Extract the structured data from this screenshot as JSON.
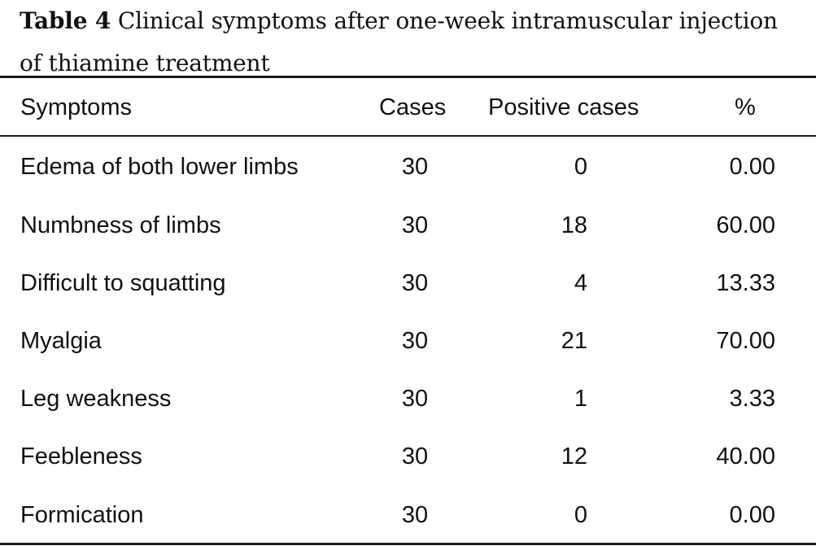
{
  "caption": {
    "label": "Table 4",
    "line1_text": "Clinical symptoms after one-week intramuscular injection",
    "line2_text": "of thiamine treatment"
  },
  "table": {
    "headers": {
      "symptoms": "Symptoms",
      "cases": "Cases",
      "positive_cases": "Positive cases",
      "percent": "%"
    },
    "rows": [
      {
        "symptom": "Edema of both lower limbs",
        "cases": "30",
        "positive": "0",
        "percent": "0.00"
      },
      {
        "symptom": "Numbness of limbs",
        "cases": "30",
        "positive": "18",
        "percent": "60.00"
      },
      {
        "symptom": "Difficult to squatting",
        "cases": "30",
        "positive": "4",
        "percent": "13.33"
      },
      {
        "symptom": "Myalgia",
        "cases": "30",
        "positive": "21",
        "percent": "70.00"
      },
      {
        "symptom": "Leg weakness",
        "cases": "30",
        "positive": "1",
        "percent": "3.33"
      },
      {
        "symptom": "Feebleness",
        "cases": "30",
        "positive": "12",
        "percent": "40.00"
      },
      {
        "symptom": "Formication",
        "cases": "30",
        "positive": "0",
        "percent": "0.00"
      }
    ]
  }
}
